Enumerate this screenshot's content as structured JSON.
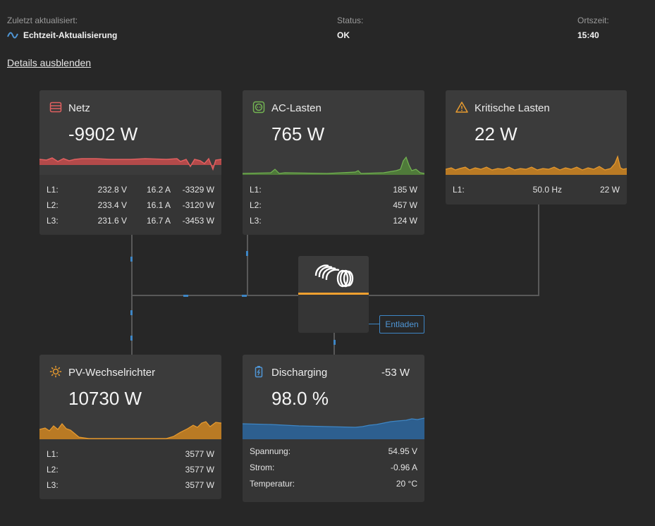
{
  "header": {
    "last_updated_label": "Zuletzt aktualisiert:",
    "last_updated_value": "Echtzeit-Aktualisierung",
    "status_label": "Status:",
    "status_value": "OK",
    "time_label": "Ortszeit:",
    "time_value": "15:40",
    "realtime_icon": "wave-icon"
  },
  "toggle_details": "Details ausblenden",
  "colors": {
    "grid": "#e06060",
    "ac_loads": "#73b352",
    "critical": "#e89b2f",
    "pv": "#e89b2f",
    "battery": "#3e86c5",
    "inverter_bar": "#f0a030",
    "flow_dot": "#3e86c5"
  },
  "grid": {
    "title": "Netz",
    "icon": "grid-icon",
    "value": "-9902 W",
    "rows": [
      {
        "label": "L1:",
        "v": "232.8 V",
        "a": "16.2 A",
        "w": "-3329 W"
      },
      {
        "label": "L2:",
        "v": "233.4 V",
        "a": "16.1 A",
        "w": "-3120 W"
      },
      {
        "label": "L3:",
        "v": "231.6 V",
        "a": "16.7 A",
        "w": "-3453 W"
      }
    ]
  },
  "ac_loads": {
    "title": "AC-Lasten",
    "icon": "outlet-icon",
    "value": "765 W",
    "rows": [
      {
        "label": "L1:",
        "w": "185 W"
      },
      {
        "label": "L2:",
        "w": "457 W"
      },
      {
        "label": "L3:",
        "w": "124 W"
      }
    ]
  },
  "critical_loads": {
    "title": "Kritische Lasten",
    "icon": "warning-icon",
    "value": "22 W",
    "rows": [
      {
        "label": "L1:",
        "hz": "50.0 Hz",
        "w": "22 W"
      }
    ]
  },
  "inverter": {
    "logo": "victron-logo-icon",
    "mode_button": "Entladen"
  },
  "pv_inverter": {
    "title": "PV-Wechselrichter",
    "icon": "sun-icon",
    "value": "10730 W",
    "rows": [
      {
        "label": "L1:",
        "w": "3577 W"
      },
      {
        "label": "L2:",
        "w": "3577 W"
      },
      {
        "label": "L3:",
        "w": "3577 W"
      }
    ]
  },
  "battery": {
    "title": "Discharging",
    "icon": "battery-icon",
    "power": "-53 W",
    "value": "98.0 %",
    "rows": [
      {
        "label": "Spannung:",
        "val": "54.95 V"
      },
      {
        "label": "Strom:",
        "val": "-0.96 A"
      },
      {
        "label": "Temperatur:",
        "val": "20 °C"
      }
    ]
  }
}
